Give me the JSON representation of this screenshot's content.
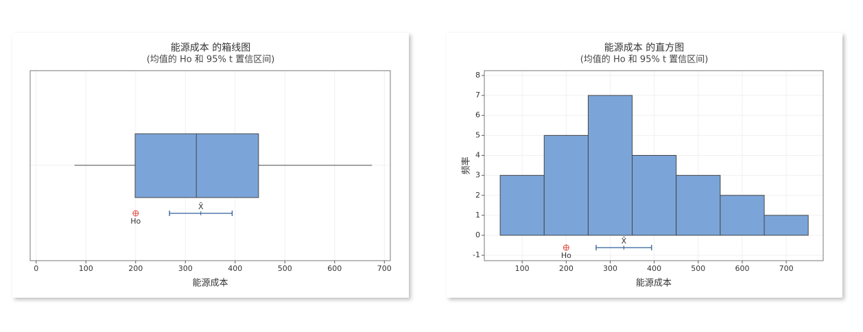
{
  "chart_data": [
    {
      "type": "box",
      "title": "能源成本 的箱线图",
      "subtitle": "(均值的 Ho 和 95% t 置信区间)",
      "x_label": "能源成本",
      "xlim": [
        -12,
        712
      ],
      "xticks": [
        0,
        100,
        200,
        300,
        400,
        500,
        600,
        700
      ],
      "grid": true,
      "box": {
        "min": 77,
        "q1": 199,
        "median": 322,
        "q3": 447,
        "max": 675
      },
      "mean": 331,
      "ci": [
        268,
        394
      ],
      "mean_label": "X̄",
      "hypothesized_mean": 200,
      "hypothesis_label": "Ho",
      "color": "#7ba5d9"
    },
    {
      "type": "histogram",
      "title": "能源成本 的直方图",
      "subtitle": "(均值的 Ho 和 95% t 置信区间)",
      "x_label": "能源成本",
      "y_label": "频率",
      "xlim": [
        14,
        784
      ],
      "xticks": [
        100,
        200,
        300,
        400,
        500,
        600,
        700
      ],
      "ylim": [
        -1.27,
        8.24
      ],
      "yticks": [
        -1,
        0,
        1,
        2,
        3,
        4,
        5,
        6,
        7,
        8
      ],
      "grid": true,
      "bins": [
        50,
        150,
        250,
        350,
        450,
        550,
        650,
        750
      ],
      "counts": [
        3,
        5,
        7,
        4,
        3,
        2,
        1
      ],
      "mean": 331,
      "ci": [
        268,
        394
      ],
      "mean_label": "X̄",
      "hypothesized_mean": 200,
      "hypothesis_label": "Ho",
      "color": "#7ba5d9"
    }
  ]
}
